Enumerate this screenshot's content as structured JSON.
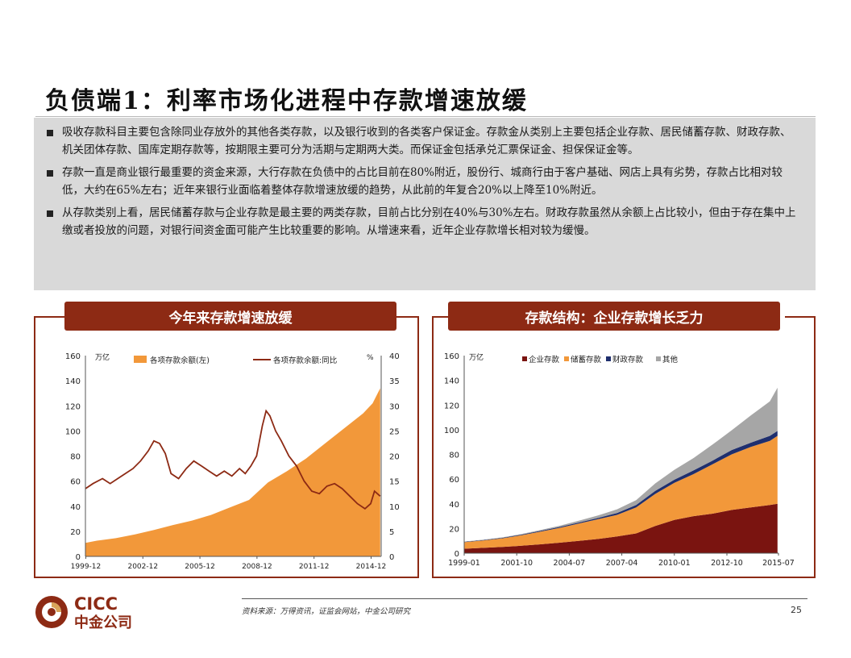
{
  "title": "负债端1：利率市场化进程中存款增速放缓",
  "paragraphs": [
    "吸收存款科目主要包含除同业存放外的其他各类存款，以及银行收到的各类客户保证金。存款金从类别上主要包括企业存款、居民储蓄存款、财政存款、机关团体存款、国库定期存款等，按期限主要可分为活期与定期两大类。而保证金包括承兑汇票保证金、担保保证金等。",
    "存款一直是商业银行最重要的资金来源，大行存款在负债中的占比目前在80%附近，股份行、城商行由于客户基础、网店上具有劣势，存款占比相对较低，大约在65%左右；近年来银行业面临着整体存款增速放缓的趋势，从此前的年复合20%以上降至10%附近。",
    "从存款类别上看，居民储蓄存款与企业存款是最主要的两类存款，目前占比分别在40%与30%左右。财政存款虽然从余额上占比较小，但由于存在集中上缴或者投放的问题，对银行间资金面可能产生比较重要的影响。从增速来看，近年企业存款增长相对较为缓慢。"
  ],
  "colors": {
    "brand": "#8d2a14",
    "orange": "#f2983a",
    "lightgray": "#d9d9d9"
  },
  "chart_data": [
    {
      "type": "area",
      "header": "今年来存款增速放缓",
      "y_unit_left": "万亿",
      "y_unit_right": "%",
      "ylim_left": [
        0,
        160
      ],
      "ylim_right": [
        0,
        40
      ],
      "yticks_left": [
        "0",
        "20",
        "40",
        "60",
        "80",
        "100",
        "120",
        "140",
        "160"
      ],
      "yticks_right": [
        "0",
        "5",
        "10",
        "15",
        "20",
        "25",
        "30",
        "35",
        "40"
      ],
      "xticks": [
        "1999-12",
        "2002-12",
        "2005-12",
        "2008-12",
        "2011-12",
        "2014-12"
      ],
      "series": [
        {
          "name": "各项存款余额(左)",
          "kind": "area",
          "axis": "left",
          "color": "#f2983a",
          "x": [
            1999.9,
            2000.5,
            2001.5,
            2002.5,
            2003.5,
            2004.5,
            2005.5,
            2006.5,
            2007.5,
            2008.5,
            2009.0,
            2009.5,
            2010.5,
            2011.5,
            2012.5,
            2013.5,
            2014.5,
            2015.0,
            2015.4
          ],
          "y": [
            10.8,
            12.5,
            14.5,
            17.5,
            21,
            25,
            28.5,
            33,
            39,
            45,
            52,
            59,
            68,
            78,
            90,
            102,
            114,
            122,
            134
          ]
        },
        {
          "name": "各项存款余额:同比",
          "kind": "line",
          "axis": "right",
          "color": "#8d2a14",
          "x": [
            1999.9,
            2000.3,
            2000.8,
            2001.2,
            2001.6,
            2002.0,
            2002.4,
            2002.8,
            2003.2,
            2003.5,
            2003.8,
            2004.1,
            2004.4,
            2004.8,
            2005.2,
            2005.6,
            2006.0,
            2006.4,
            2006.8,
            2007.2,
            2007.6,
            2008.0,
            2008.3,
            2008.6,
            2008.9,
            2009.2,
            2009.4,
            2009.6,
            2009.9,
            2010.2,
            2010.6,
            2011.0,
            2011.4,
            2011.8,
            2012.2,
            2012.6,
            2013.0,
            2013.4,
            2013.8,
            2014.2,
            2014.6,
            2014.9,
            2015.1,
            2015.4
          ],
          "y": [
            13.5,
            14.5,
            15.5,
            14.5,
            15.5,
            16.5,
            17.5,
            19,
            21,
            23,
            22.5,
            20.5,
            16.5,
            15.5,
            17.5,
            19,
            18,
            17,
            16,
            17,
            16,
            17.5,
            16.5,
            18,
            20,
            26,
            29,
            28,
            25,
            23,
            20,
            18,
            15,
            13,
            12.5,
            14,
            14.5,
            13.5,
            12,
            10.5,
            9.5,
            10.5,
            13,
            12
          ]
        }
      ]
    },
    {
      "type": "area",
      "header": "存款结构：企业存款增长乏力",
      "y_unit": "万亿",
      "ylim": [
        0,
        160
      ],
      "yticks": [
        "0",
        "20",
        "40",
        "60",
        "80",
        "100",
        "120",
        "140",
        "160"
      ],
      "xticks": [
        "1999-01",
        "2001-10",
        "2004-07",
        "2007-04",
        "2010-01",
        "2012-10",
        "2015-07"
      ],
      "stacked": true,
      "x": [
        1999.0,
        2000.0,
        2001.0,
        2002.0,
        2003.0,
        2004.0,
        2005.0,
        2006.0,
        2007.0,
        2008.0,
        2009.0,
        2010.0,
        2011.0,
        2012.0,
        2013.0,
        2014.0,
        2015.0,
        2015.4
      ],
      "series": [
        {
          "name": "企业存款",
          "color": "#7a1410",
          "values": [
            3.6,
            4.3,
            5,
            6,
            7.2,
            8.5,
            10,
            11.5,
            13.5,
            16,
            22,
            27,
            30,
            32,
            35,
            37,
            39,
            40
          ]
        },
        {
          "name": "储蓄存款",
          "color": "#f2983a",
          "values": [
            5.3,
            6,
            7,
            8.5,
            10.3,
            12,
            14,
            16,
            17.5,
            21,
            26,
            30,
            34,
            40,
            45,
            49,
            52,
            55
          ]
        },
        {
          "name": "财政存款",
          "color": "#1f2f6e",
          "values": [
            0.3,
            0.3,
            0.4,
            0.5,
            0.6,
            0.7,
            0.8,
            1,
            1.5,
            2,
            2.5,
            2.5,
            3,
            3,
            3.5,
            3.5,
            4,
            4
          ]
        },
        {
          "name": "其他",
          "color": "#a6a6a6",
          "values": [
            0.2,
            0.3,
            0.4,
            0.5,
            0.7,
            1,
            1.5,
            2,
            3,
            4,
            6,
            8,
            10,
            13,
            16,
            22,
            28,
            35
          ]
        }
      ]
    }
  ],
  "footer": {
    "source": "资料来源：万得资讯，证监会网站，中金公司研究",
    "page": "25"
  },
  "logo": {
    "en": "CICC",
    "cn": "中金公司"
  }
}
